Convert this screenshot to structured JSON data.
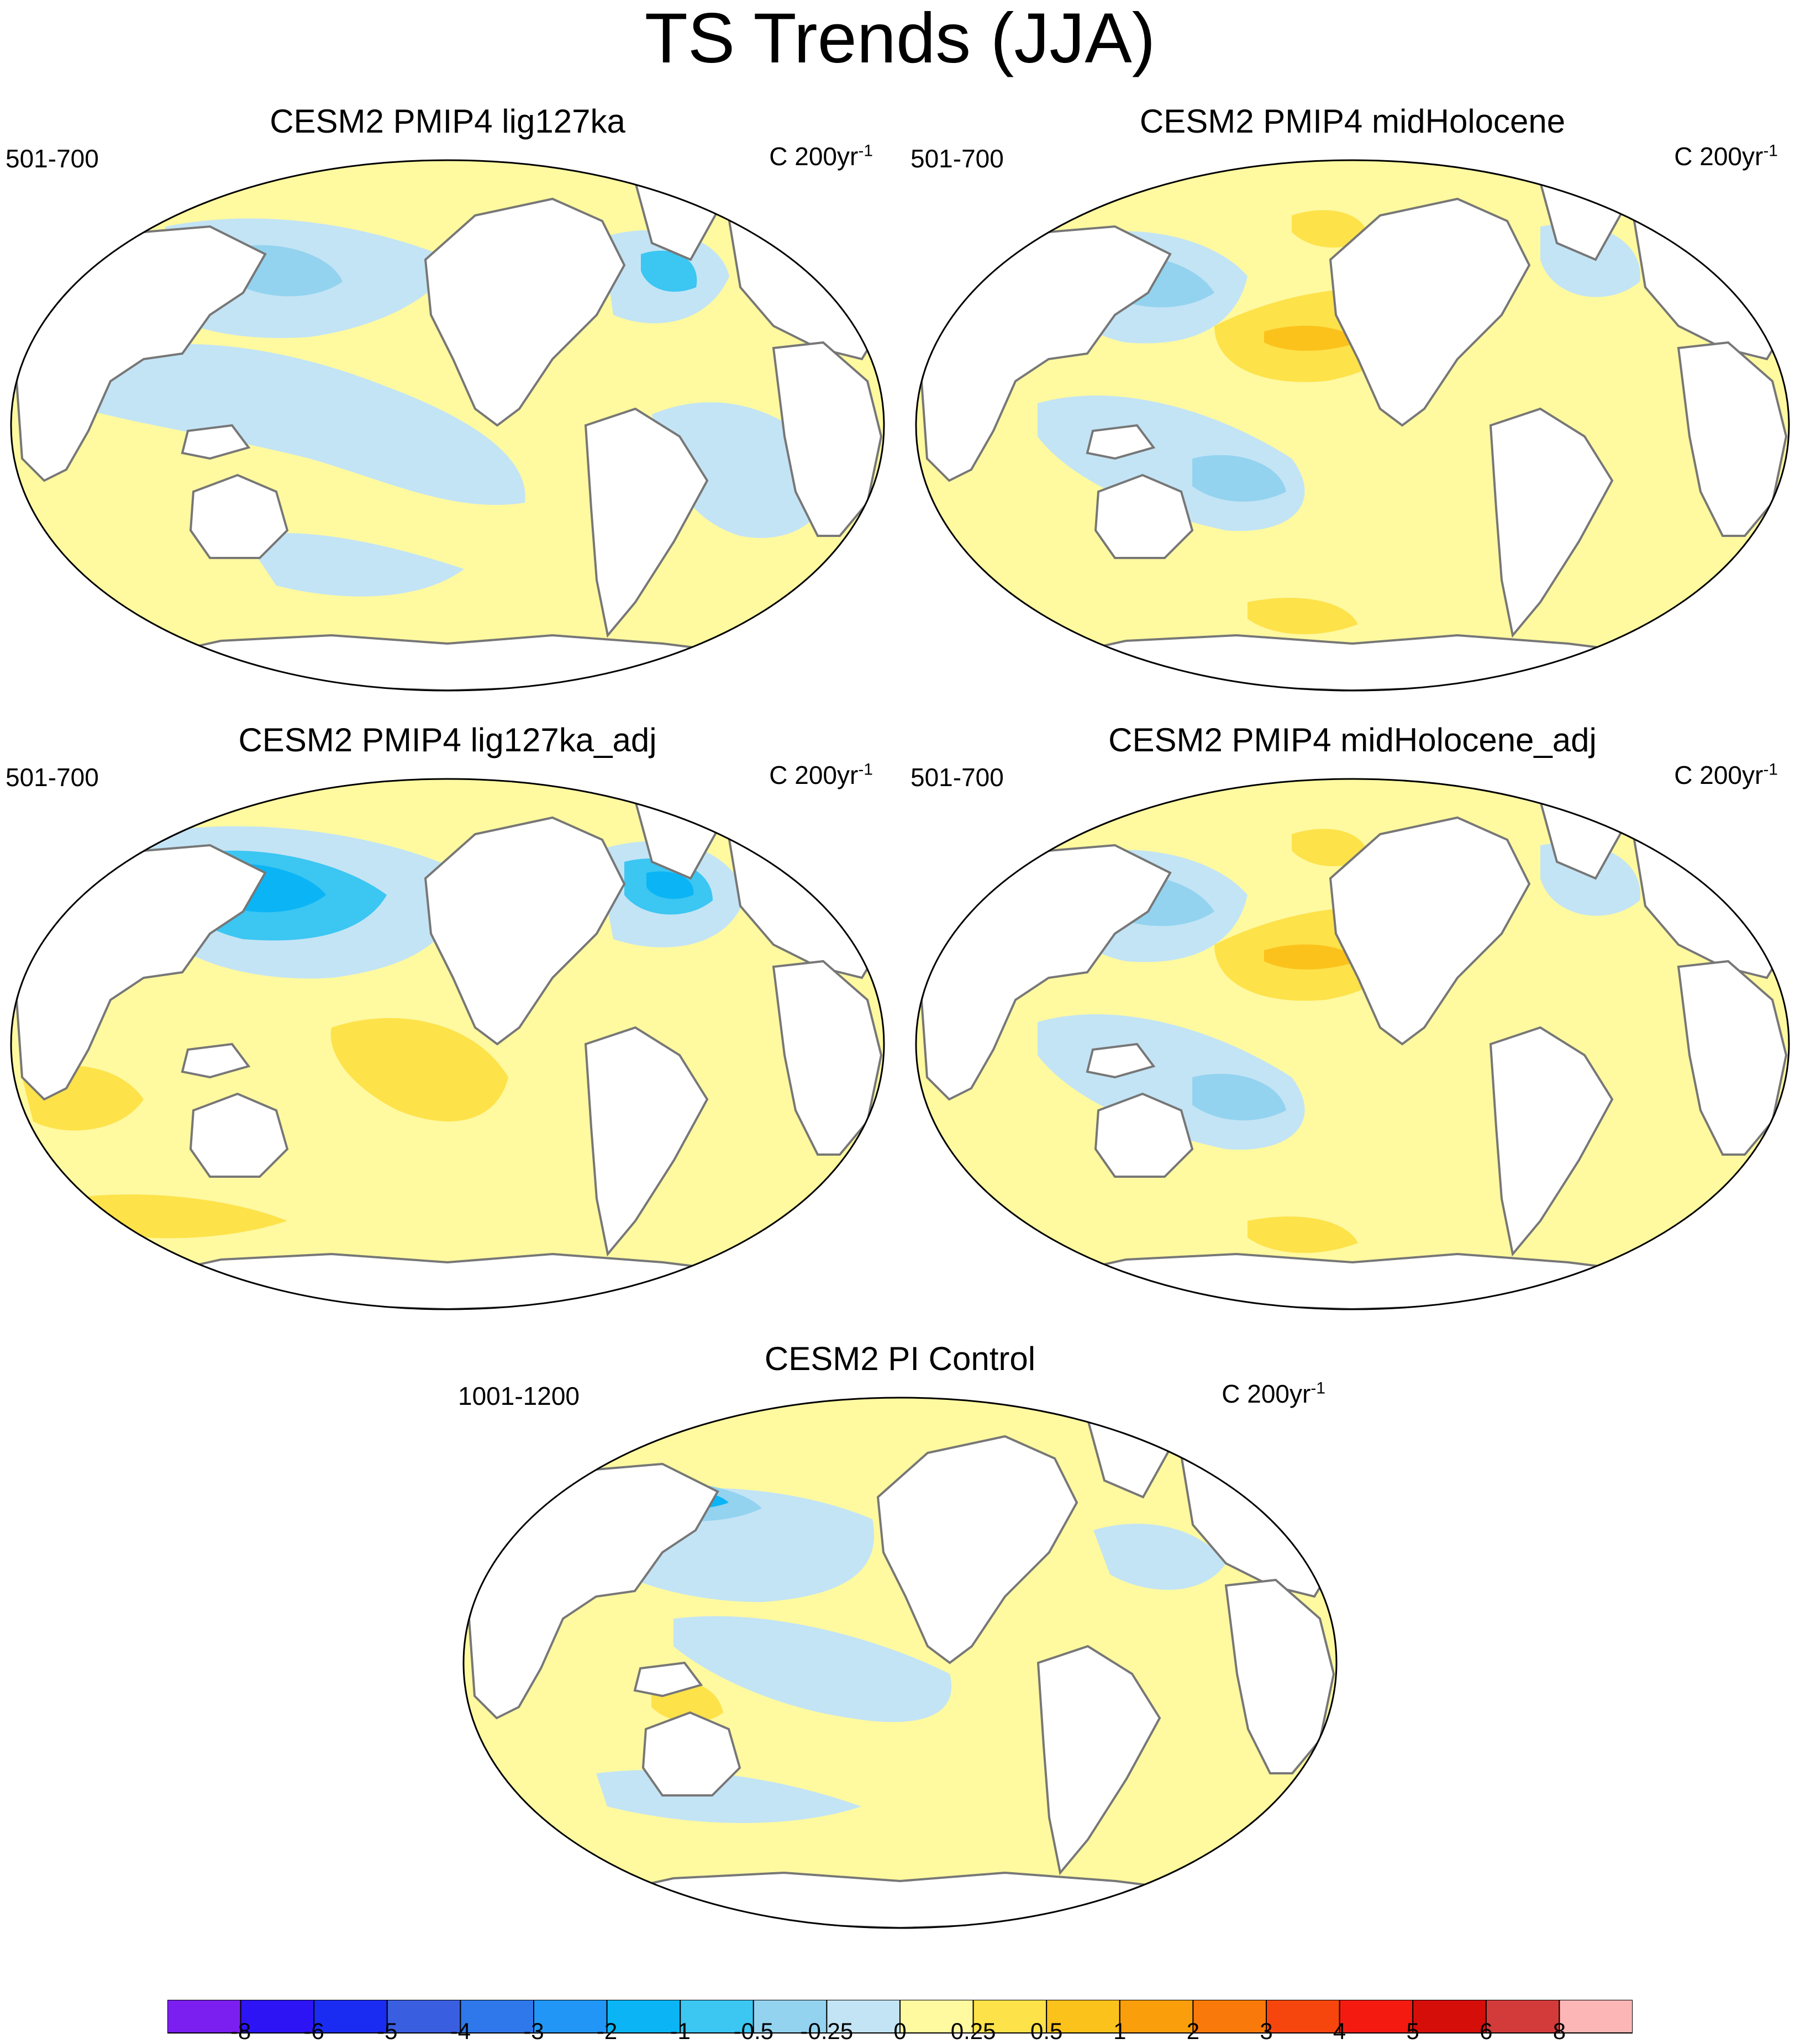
{
  "title": "TS Trends (JJA)",
  "panels": [
    {
      "title": "CESM2 PMIP4 lig127ka",
      "years": "501-700",
      "units": "C 200yr",
      "units_exp": "-1",
      "pattern": "lig"
    },
    {
      "title": "CESM2 PMIP4 midHolocene",
      "years": "501-700",
      "units": "C 200yr",
      "units_exp": "-1",
      "pattern": "mh"
    },
    {
      "title": "CESM2 PMIP4 lig127ka_adj",
      "years": "501-700",
      "units": "C 200yr",
      "units_exp": "-1",
      "pattern": "ligadj"
    },
    {
      "title": "CESM2 PMIP4 midHolocene_adj",
      "years": "501-700",
      "units": "C 200yr",
      "units_exp": "-1",
      "pattern": "mh"
    },
    {
      "title": "CESM2 PI Control",
      "years": "1001-1200",
      "units": "C 200yr",
      "units_exp": "-1",
      "pattern": "pi"
    }
  ],
  "colorbar": {
    "labels": [
      "-8",
      "-6",
      "-5",
      "-4",
      "-3",
      "-2",
      "-1",
      "-0.5",
      "-0.25",
      "0",
      "0.25",
      "0.5",
      "1",
      "2",
      "3",
      "4",
      "5",
      "6",
      "8"
    ],
    "colors": [
      "#7b1ff0",
      "#2d14f5",
      "#1a2cf2",
      "#3a5ee0",
      "#2f78eb",
      "#2196f7",
      "#0bb5f5",
      "#3cc6f2",
      "#93d3ef",
      "#c3e4f5",
      "#fff9a0",
      "#fde24a",
      "#fcc21c",
      "#fb9e0b",
      "#f97a0a",
      "#f6460d",
      "#f51a10",
      "#d60e0a",
      "#d33b3b",
      "#fcb6b6"
    ]
  }
}
